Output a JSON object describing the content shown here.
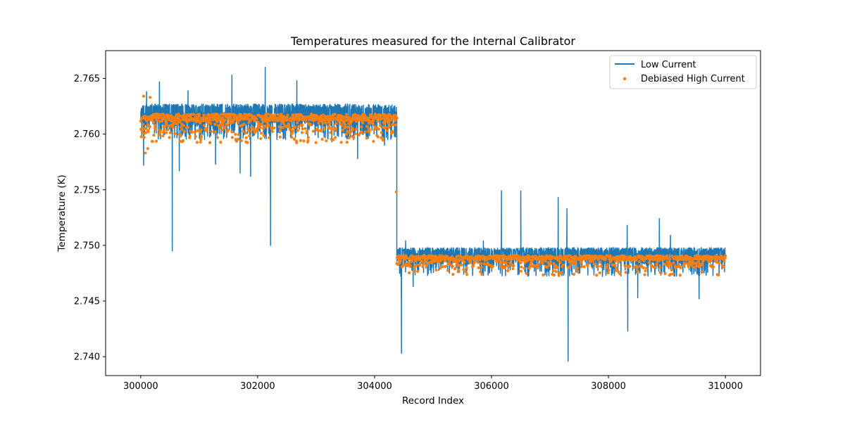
{
  "chart_data": {
    "type": "line",
    "title": "Temperatures measured for the Internal Calibrator",
    "xlabel": "Record Index",
    "ylabel": "Temperature (K)",
    "xlim": [
      299400,
      310600
    ],
    "ylim": [
      2.7383,
      2.7675
    ],
    "x_ticks": [
      300000,
      302000,
      304000,
      306000,
      308000,
      310000
    ],
    "x_tick_labels": [
      "300000",
      "302000",
      "304000",
      "306000",
      "308000",
      "310000"
    ],
    "y_ticks": [
      2.74,
      2.745,
      2.75,
      2.755,
      2.76,
      2.765
    ],
    "y_tick_labels": [
      "2.740",
      "2.745",
      "2.750",
      "2.755",
      "2.760",
      "2.765"
    ],
    "grid": false,
    "legend_position": "top-right",
    "series": [
      {
        "name": "Low Current",
        "style": "line",
        "color": "#1f77b4",
        "segments": [
          {
            "x_start": 300000,
            "x_end": 304380,
            "mean": 2.7614,
            "low": 2.7595,
            "high": 2.7627
          },
          {
            "x_start": 304380,
            "x_end": 310000,
            "mean": 2.7488,
            "low": 2.7472,
            "high": 2.7498
          }
        ],
        "spikes": [
          {
            "x": 300050,
            "y": 2.7572
          },
          {
            "x": 300100,
            "y": 2.7638
          },
          {
            "x": 300320,
            "y": 2.7647
          },
          {
            "x": 300540,
            "y": 2.7495
          },
          {
            "x": 300660,
            "y": 2.7567
          },
          {
            "x": 300810,
            "y": 2.7639
          },
          {
            "x": 301280,
            "y": 2.7573
          },
          {
            "x": 301560,
            "y": 2.7653
          },
          {
            "x": 301700,
            "y": 2.7565
          },
          {
            "x": 301880,
            "y": 2.7562
          },
          {
            "x": 302130,
            "y": 2.766
          },
          {
            "x": 302220,
            "y": 2.75
          },
          {
            "x": 302670,
            "y": 2.7648
          },
          {
            "x": 303270,
            "y": 2.7593
          },
          {
            "x": 303710,
            "y": 2.7578
          },
          {
            "x": 304170,
            "y": 2.759
          },
          {
            "x": 304460,
            "y": 2.7403
          },
          {
            "x": 304530,
            "y": 2.7504
          },
          {
            "x": 304660,
            "y": 2.7463
          },
          {
            "x": 305860,
            "y": 2.7504
          },
          {
            "x": 306170,
            "y": 2.7549
          },
          {
            "x": 306500,
            "y": 2.7549
          },
          {
            "x": 307140,
            "y": 2.7543
          },
          {
            "x": 307310,
            "y": 2.7396
          },
          {
            "x": 307290,
            "y": 2.7533
          },
          {
            "x": 308330,
            "y": 2.7423
          },
          {
            "x": 308320,
            "y": 2.7518
          },
          {
            "x": 308500,
            "y": 2.7453
          },
          {
            "x": 308870,
            "y": 2.7524
          },
          {
            "x": 309550,
            "y": 2.7452
          },
          {
            "x": 309060,
            "y": 2.7509
          }
        ]
      },
      {
        "name": "Debiased High Current",
        "style": "scatter",
        "color": "#ff7f0e",
        "segments": [
          {
            "x_start": 300000,
            "x_end": 304380,
            "mean": 2.7615,
            "low": 2.7592,
            "high": 2.762
          },
          {
            "x_start": 304380,
            "x_end": 310000,
            "mean": 2.7489,
            "low": 2.7473,
            "high": 2.7492
          }
        ],
        "outliers": [
          {
            "x": 300050,
            "y": 2.7634
          },
          {
            "x": 300080,
            "y": 2.7583
          },
          {
            "x": 300120,
            "y": 2.7587
          },
          {
            "x": 300160,
            "y": 2.7633
          },
          {
            "x": 304370,
            "y": 2.7548
          }
        ]
      }
    ]
  }
}
